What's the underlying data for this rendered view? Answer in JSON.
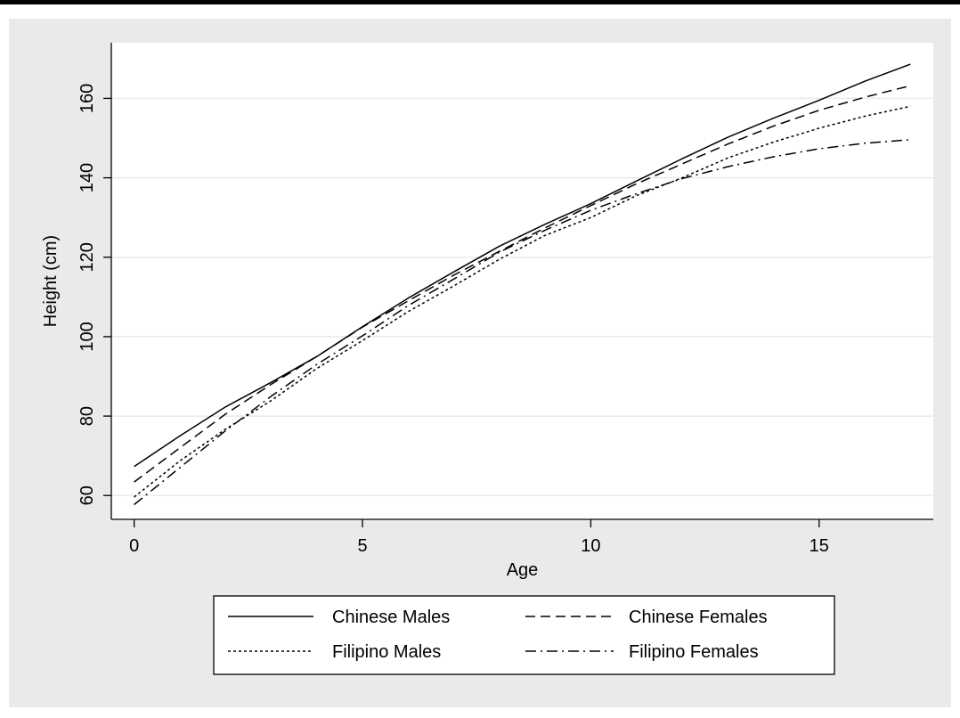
{
  "chart_data": {
    "type": "line",
    "title": "",
    "xlabel": "Age",
    "ylabel": "Height (cm)",
    "xlim": [
      -0.5,
      17.5
    ],
    "ylim": [
      54,
      174
    ],
    "xticks": [
      0,
      5,
      10,
      15
    ],
    "yticks": [
      60,
      80,
      100,
      120,
      140,
      160
    ],
    "x_tick_labels": [
      "0",
      "5",
      "10",
      "15"
    ],
    "y_tick_labels": [
      "60",
      "80",
      "100",
      "120",
      "140",
      "160"
    ],
    "grid": true,
    "legend_position": "bottom",
    "x": [
      0,
      1,
      2,
      3,
      4,
      5,
      6,
      7,
      8,
      9,
      10,
      11,
      12,
      13,
      14,
      15,
      16,
      17
    ],
    "series": [
      {
        "name": "Chinese Males",
        "dash": "solid",
        "values": [
          67.3,
          75.0,
          82.3,
          88.5,
          95.0,
          102.5,
          109.7,
          116.3,
          122.8,
          128.3,
          133.5,
          139.2,
          144.8,
          150.2,
          155.0,
          159.5,
          164.3,
          168.6
        ]
      },
      {
        "name": "Chinese Females",
        "dash": "dashed",
        "values": [
          63.4,
          72.0,
          80.5,
          88.0,
          95.0,
          102.4,
          109.0,
          115.5,
          121.5,
          127.4,
          133.0,
          138.5,
          143.5,
          148.5,
          153.0,
          157.0,
          160.3,
          163.2
        ]
      },
      {
        "name": "Filipino Males",
        "dash": "dotted",
        "values": [
          59.6,
          68.7,
          76.7,
          83.9,
          92.0,
          99.0,
          106.3,
          112.8,
          119.5,
          125.5,
          130.0,
          135.5,
          140.0,
          145.0,
          149.0,
          152.5,
          155.5,
          158.0
        ]
      },
      {
        "name": "Filipino Females",
        "dash": "dashdot",
        "values": [
          57.7,
          67.0,
          76.3,
          85.0,
          93.0,
          100.2,
          107.8,
          114.5,
          121.3,
          126.8,
          131.8,
          136.0,
          139.8,
          142.8,
          145.3,
          147.3,
          148.7,
          149.6
        ]
      }
    ]
  }
}
